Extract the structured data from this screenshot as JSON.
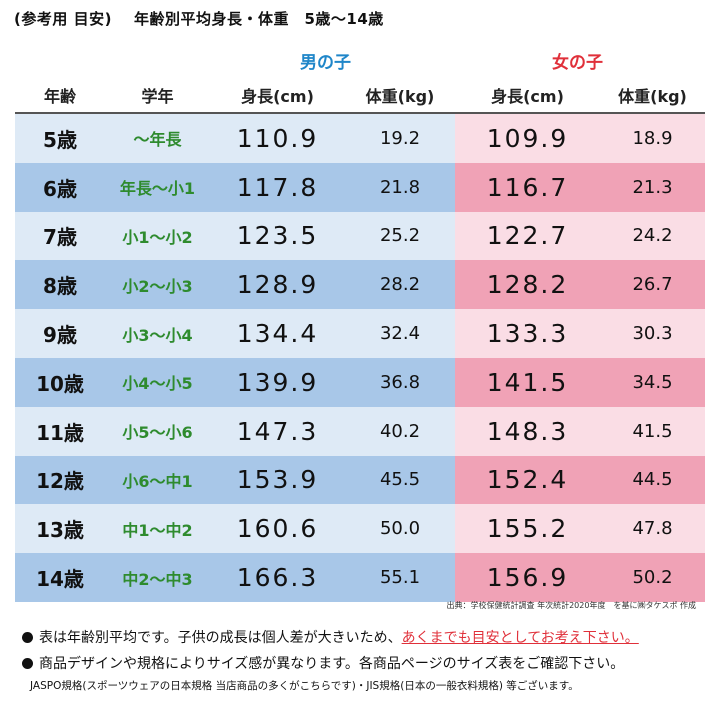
{
  "header": {
    "title": [
      "(参考用 目安)",
      "年齢別平均身長・体重　5歳〜14歳"
    ]
  },
  "table": {
    "groups": [
      "男の子",
      "女の子"
    ],
    "columns": [
      "年齢",
      "学年",
      "身長(cm)",
      "体重(kg)",
      "身長(cm)",
      "体重(kg)"
    ],
    "rows": [
      [
        "5歳",
        "〜年長",
        "110.9",
        "19.2",
        "109.9",
        "18.9"
      ],
      [
        "6歳",
        "年長〜小1",
        "117.8",
        "21.8",
        "116.7",
        "21.3"
      ],
      [
        "7歳",
        "小1〜小2",
        "123.5",
        "25.2",
        "122.7",
        "24.2"
      ],
      [
        "8歳",
        "小2〜小3",
        "128.9",
        "28.2",
        "128.2",
        "26.7"
      ],
      [
        "9歳",
        "小3〜小4",
        "134.4",
        "32.4",
        "133.3",
        "30.3"
      ],
      [
        "10歳",
        "小4〜小5",
        "139.9",
        "36.8",
        "141.5",
        "34.5"
      ],
      [
        "11歳",
        "小5〜小6",
        "147.3",
        "40.2",
        "148.3",
        "41.5"
      ],
      [
        "12歳",
        "小6〜中1",
        "153.9",
        "45.5",
        "152.4",
        "44.5"
      ],
      [
        "13歳",
        "中1〜中2",
        "160.6",
        "50.0",
        "155.2",
        "47.8"
      ],
      [
        "14歳",
        "中2〜中3",
        "166.3",
        "55.1",
        "156.9",
        "50.2"
      ]
    ],
    "source": "出典：学校保健統計調査 年次統計2020年度　を基に㈱タケスポ 作成"
  },
  "notes": {
    "note1": "表は年齢別平均です。子供の成長は個人差が大きいため、",
    "note1_emphasis": "あくまでも目安としてお考え下さい。",
    "note2": "商品デザインや規格によりサイズ感が異なります。各商品ページのサイズ表をご確認下さい。",
    "note3": "JASPO規格(スポーツウェアの日本規格 当店商品の多くがこちらです)・JIS規格(日本の一般衣料規格) 等ございます。"
  }
}
